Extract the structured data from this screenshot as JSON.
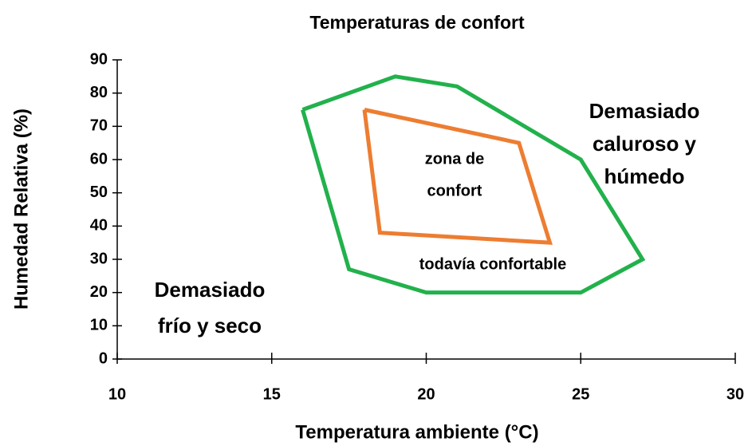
{
  "chart_data": {
    "type": "line",
    "title": "Temperaturas de confort",
    "x_label": "Temperatura ambiente (°C)",
    "y_label": "Humedad Relativa (%)",
    "xlim": [
      10,
      30
    ],
    "xticks": [
      10,
      15,
      20,
      25,
      30
    ],
    "ylim": [
      0,
      90
    ],
    "yticks": [
      0,
      10,
      20,
      30,
      40,
      50,
      60,
      70,
      80,
      90
    ],
    "series": [
      {
        "color": "#22b14c",
        "x": [
          16,
          19,
          21,
          25,
          27,
          25,
          20,
          17.5,
          16
        ],
        "values": [
          75,
          85,
          82,
          60,
          30,
          20,
          20,
          27,
          75
        ]
      },
      {
        "color": "#ed7d31",
        "x": [
          18,
          23,
          24,
          18.5,
          18
        ],
        "values": [
          75,
          65,
          35,
          38,
          75
        ]
      }
    ],
    "annotations": [
      {
        "lines": [
          "zona de",
          "confort"
        ]
      },
      {
        "lines": [
          "todavía confortable"
        ]
      },
      {
        "lines": [
          "Demasiado",
          "caluroso y",
          "húmedo"
        ]
      },
      {
        "lines": [
          "Demasiado",
          "frío y seco"
        ]
      }
    ]
  }
}
